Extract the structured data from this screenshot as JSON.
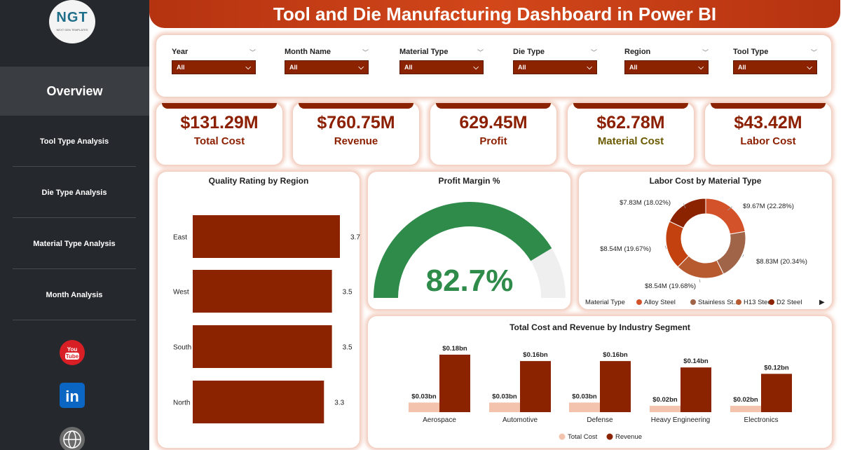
{
  "header": {
    "title": "Tool and Die Manufacturing Dashboard in Power BI"
  },
  "logo": {
    "text": "NGT",
    "subtext": "NEXT GEN TEMPLATES"
  },
  "sidebar": {
    "active": "Overview",
    "items": [
      {
        "label": "Tool Type Analysis"
      },
      {
        "label": "Die Type Analysis"
      },
      {
        "label": "Material Type Analysis"
      },
      {
        "label": "Month Analysis"
      }
    ],
    "social": [
      {
        "icon": "youtube-icon",
        "label": "You Tube",
        "color": "#d81f26"
      },
      {
        "icon": "linkedin-icon",
        "label": "in",
        "color": "#0a66c2"
      },
      {
        "icon": "globe-icon",
        "label": "www",
        "color": "#6b6b6b"
      }
    ]
  },
  "filters": [
    {
      "label": "Year",
      "value": "All"
    },
    {
      "label": "Month Name",
      "value": "All"
    },
    {
      "label": "Material Type",
      "value": "All"
    },
    {
      "label": "Die Type",
      "value": "All"
    },
    {
      "label": "Region",
      "value": "All"
    },
    {
      "label": "Tool Type",
      "value": "All"
    }
  ],
  "kpis": [
    {
      "value": "$131.29M",
      "label": "Total Cost",
      "color": "#8b1f00"
    },
    {
      "value": "$760.75M",
      "label": "Revenue",
      "color": "#8b1f00"
    },
    {
      "value": "629.45M",
      "label": "Profit",
      "color": "#8b1f00"
    },
    {
      "value": "$62.78M",
      "label": "Material Cost",
      "color": "#6b5a00"
    },
    {
      "value": "$43.42M",
      "label": "Labor Cost",
      "color": "#8b1f00"
    }
  ],
  "charts": {
    "quality": {
      "title": "Quality Rating by Region"
    },
    "gauge": {
      "title": "Profit Margin %",
      "value_text": "82.7%"
    },
    "donut": {
      "title": "Labor Cost by Material Type",
      "legend_title": "Material Type"
    },
    "industry": {
      "title": "Total Cost and Revenue by Industry Segment"
    }
  },
  "chart_data": [
    {
      "type": "bar",
      "orientation": "horizontal",
      "title": "Quality Rating by Region",
      "categories": [
        "East",
        "West",
        "South",
        "North"
      ],
      "values": [
        3.7,
        3.5,
        3.5,
        3.3
      ],
      "labels": [
        "3.7",
        "3.5",
        "3.5",
        "3.3"
      ],
      "color": "#8b2200"
    },
    {
      "type": "gauge",
      "title": "Profit Margin %",
      "value": 82.7,
      "min": 0,
      "max": 100,
      "color": "#2e8b4a"
    },
    {
      "type": "pie",
      "style": "donut",
      "title": "Labor Cost by Material Type",
      "legend_title": "Material Type",
      "slices": [
        {
          "name": "Alloy Steel",
          "value": 9.67,
          "label": "$9.67M (22.28%)",
          "color": "#d4522a"
        },
        {
          "name": "Stainless St...",
          "value": 8.83,
          "label": "$8.83M (20.34%)",
          "color": "#a06448"
        },
        {
          "name": "H13 Steel",
          "value": 8.54,
          "label": "$8.54M (19.68%)",
          "color": "#b85a30"
        },
        {
          "name": "",
          "value": 8.54,
          "label": "$8.54M (19.67%)",
          "color": "#c2410f"
        },
        {
          "name": "D2 Steel",
          "value": 7.83,
          "label": "$7.83M (18.02%)",
          "color": "#8b2200"
        }
      ],
      "legend": [
        {
          "name": "Alloy Steel",
          "color": "#d4522a"
        },
        {
          "name": "Stainless St...",
          "color": "#a06448"
        },
        {
          "name": "H13 Steel",
          "color": "#b85a30"
        },
        {
          "name": "D2 Steel",
          "color": "#8b2200"
        }
      ]
    },
    {
      "type": "bar",
      "title": "Total Cost and Revenue by Industry Segment",
      "categories": [
        "Aerospace",
        "Automotive",
        "Defense",
        "Heavy Engineering",
        "Electronics"
      ],
      "series": [
        {
          "name": "Total Cost",
          "values": [
            0.03,
            0.03,
            0.03,
            0.02,
            0.02
          ],
          "labels": [
            "$0.03bn",
            "$0.03bn",
            "$0.03bn",
            "$0.02bn",
            "$0.02bn"
          ],
          "color": "#f4c3ad"
        },
        {
          "name": "Revenue",
          "values": [
            0.18,
            0.16,
            0.16,
            0.14,
            0.12
          ],
          "labels": [
            "$0.18bn",
            "$0.16bn",
            "$0.16bn",
            "$0.14bn",
            "$0.12bn"
          ],
          "color": "#8b2200"
        }
      ]
    }
  ]
}
